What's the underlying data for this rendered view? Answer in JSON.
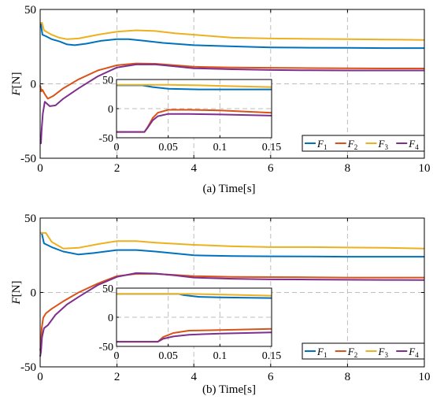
{
  "chart_data": [
    {
      "type": "line",
      "caption": "(a)  Time[s]",
      "ylabel": "F",
      "yunit": "[N]",
      "xlim": [
        0,
        10
      ],
      "ylim": [
        -50,
        50
      ],
      "xticks": [
        "0",
        "2",
        "4",
        "6",
        "8",
        "10"
      ],
      "yticks": [
        "50",
        "0",
        "-50"
      ],
      "grid": true,
      "legend_position": "bottom-right",
      "legend": [
        {
          "base": "F",
          "sub": "1"
        },
        {
          "base": "F",
          "sub": "2"
        },
        {
          "base": "F",
          "sub": "3"
        },
        {
          "base": "F",
          "sub": "4"
        }
      ],
      "colors": [
        "#0072BD",
        "#D95319",
        "#EDB120",
        "#7E2F8E"
      ],
      "series": [
        {
          "points": [
            [
              0,
              40
            ],
            [
              0.02,
              40
            ],
            [
              0.06,
              33
            ],
            [
              0.15,
              32
            ],
            [
              0.3,
              30
            ],
            [
              0.5,
              28.5
            ],
            [
              0.7,
              26.5
            ],
            [
              0.9,
              26
            ],
            [
              1.2,
              27
            ],
            [
              1.6,
              29
            ],
            [
              2,
              30
            ],
            [
              2.3,
              30
            ],
            [
              2.7,
              29
            ],
            [
              3.2,
              27.5
            ],
            [
              4,
              26
            ],
            [
              5,
              25.2
            ],
            [
              6,
              24.5
            ],
            [
              7,
              24.3
            ],
            [
              8,
              24.2
            ],
            [
              9,
              24
            ],
            [
              10,
              24
            ]
          ]
        },
        {
          "points": [
            [
              0,
              -1
            ],
            [
              0.03,
              -5
            ],
            [
              0.06,
              -4
            ],
            [
              0.12,
              -7
            ],
            [
              0.2,
              -10
            ],
            [
              0.35,
              -8
            ],
            [
              0.6,
              -3
            ],
            [
              1,
              3
            ],
            [
              1.5,
              9
            ],
            [
              2,
              12.5
            ],
            [
              2.5,
              13.7
            ],
            [
              3,
              13.5
            ],
            [
              3.5,
              12.5
            ],
            [
              4,
              11.5
            ],
            [
              5,
              11
            ],
            [
              6,
              10.8
            ],
            [
              7,
              10.6
            ],
            [
              8,
              10.5
            ],
            [
              9,
              10.3
            ],
            [
              10,
              10.3
            ]
          ]
        },
        {
          "points": [
            [
              0,
              41
            ],
            [
              0.05,
              41
            ],
            [
              0.1,
              36
            ],
            [
              0.3,
              33
            ],
            [
              0.5,
              31
            ],
            [
              0.7,
              30
            ],
            [
              1,
              30.5
            ],
            [
              1.5,
              33
            ],
            [
              2,
              35
            ],
            [
              2.5,
              36
            ],
            [
              3,
              35.5
            ],
            [
              3.5,
              34
            ],
            [
              4,
              33
            ],
            [
              5,
              31
            ],
            [
              6,
              30.5
            ],
            [
              7,
              30.2
            ],
            [
              8,
              30
            ],
            [
              9,
              29.8
            ],
            [
              10,
              29.5
            ]
          ]
        },
        {
          "points": [
            [
              0,
              -40
            ],
            [
              0.02,
              -40
            ],
            [
              0.04,
              -30
            ],
            [
              0.07,
              -20
            ],
            [
              0.12,
              -12
            ],
            [
              0.25,
              -15
            ],
            [
              0.4,
              -14.5
            ],
            [
              0.6,
              -10
            ],
            [
              1,
              -3
            ],
            [
              1.5,
              5
            ],
            [
              2,
              11
            ],
            [
              2.5,
              13
            ],
            [
              3,
              13
            ],
            [
              3.5,
              11.8
            ],
            [
              4,
              10.5
            ],
            [
              5,
              9.8
            ],
            [
              6,
              9.3
            ],
            [
              7,
              9.1
            ],
            [
              8,
              9
            ],
            [
              9,
              9
            ],
            [
              10,
              9
            ]
          ]
        }
      ],
      "inset": {
        "xlim": [
          0,
          0.15
        ],
        "ylim": [
          -50,
          50
        ],
        "xticks": [
          "0",
          "0.05",
          "0.1",
          "0.15"
        ],
        "yticks": [
          "50",
          "0",
          "-50"
        ],
        "series": [
          {
            "points": [
              [
                0,
                40
              ],
              [
                0.025,
                40
              ],
              [
                0.035,
                37
              ],
              [
                0.05,
                34
              ],
              [
                0.08,
                33
              ],
              [
                0.15,
                33
              ]
            ]
          },
          {
            "points": [
              [
                0,
                -40
              ],
              [
                0.027,
                -40
              ],
              [
                0.03,
                -32
              ],
              [
                0.035,
                -16
              ],
              [
                0.04,
                -7
              ],
              [
                0.05,
                -2
              ],
              [
                0.07,
                -2
              ],
              [
                0.1,
                -3
              ],
              [
                0.15,
                -7
              ]
            ]
          },
          {
            "points": [
              [
                0,
                41
              ],
              [
                0.05,
                41
              ],
              [
                0.08,
                40
              ],
              [
                0.1,
                39
              ],
              [
                0.15,
                37
              ]
            ]
          },
          {
            "points": [
              [
                0,
                -40
              ],
              [
                0.027,
                -40
              ],
              [
                0.03,
                -33
              ],
              [
                0.035,
                -20
              ],
              [
                0.04,
                -13
              ],
              [
                0.05,
                -9
              ],
              [
                0.07,
                -9
              ],
              [
                0.1,
                -10
              ],
              [
                0.15,
                -12
              ]
            ]
          }
        ]
      }
    },
    {
      "type": "line",
      "caption": "(b)  Time[s]",
      "ylabel": "F",
      "yunit": "[N]",
      "xlim": [
        0,
        10
      ],
      "ylim": [
        -50,
        50
      ],
      "xticks": [
        "0",
        "2",
        "4",
        "6",
        "8",
        "10"
      ],
      "yticks": [
        "50",
        "0",
        "-50"
      ],
      "grid": true,
      "legend_position": "bottom-right",
      "legend": [
        {
          "base": "F",
          "sub": "1"
        },
        {
          "base": "F",
          "sub": "2"
        },
        {
          "base": "F",
          "sub": "3"
        },
        {
          "base": "F",
          "sub": "4"
        }
      ],
      "colors": [
        "#0072BD",
        "#D95319",
        "#EDB120",
        "#7E2F8E"
      ],
      "series": [
        {
          "points": [
            [
              0,
              40
            ],
            [
              0.04,
              40
            ],
            [
              0.1,
              33
            ],
            [
              0.3,
              30.5
            ],
            [
              0.6,
              27.5
            ],
            [
              1,
              25.5
            ],
            [
              1.4,
              26.5
            ],
            [
              2,
              28.5
            ],
            [
              2.5,
              28.5
            ],
            [
              3,
              27.5
            ],
            [
              4,
              25
            ],
            [
              5,
              24.5
            ],
            [
              6,
              24.3
            ],
            [
              7,
              24.2
            ],
            [
              8,
              24
            ],
            [
              9,
              24
            ],
            [
              10,
              24
            ]
          ]
        },
        {
          "points": [
            [
              0,
              -39
            ],
            [
              0.02,
              -35
            ],
            [
              0.04,
              -24
            ],
            [
              0.08,
              -17
            ],
            [
              0.15,
              -14
            ],
            [
              0.3,
              -11
            ],
            [
              0.6,
              -6
            ],
            [
              1,
              0
            ],
            [
              1.5,
              6
            ],
            [
              2,
              11
            ],
            [
              2.5,
              12.5
            ],
            [
              3,
              12.5
            ],
            [
              3.5,
              11.8
            ],
            [
              4,
              11
            ],
            [
              5,
              10.5
            ],
            [
              6,
              10.3
            ],
            [
              7,
              10.2
            ],
            [
              8,
              10
            ],
            [
              9,
              10
            ],
            [
              10,
              10
            ]
          ]
        },
        {
          "points": [
            [
              0,
              40
            ],
            [
              0.05,
              40
            ],
            [
              0.15,
              40
            ],
            [
              0.3,
              34
            ],
            [
              0.6,
              29.5
            ],
            [
              1,
              30
            ],
            [
              1.5,
              32.5
            ],
            [
              2,
              34.5
            ],
            [
              2.5,
              34.5
            ],
            [
              3,
              33.5
            ],
            [
              4,
              32
            ],
            [
              5,
              31
            ],
            [
              6,
              30.5
            ],
            [
              7,
              30.5
            ],
            [
              8,
              30.2
            ],
            [
              9,
              30
            ],
            [
              10,
              29.5
            ]
          ]
        },
        {
          "points": [
            [
              0,
              -43
            ],
            [
              0.02,
              -40
            ],
            [
              0.05,
              -30
            ],
            [
              0.1,
              -24
            ],
            [
              0.2,
              -22
            ],
            [
              0.4,
              -15
            ],
            [
              0.7,
              -8
            ],
            [
              1,
              -3
            ],
            [
              1.5,
              5
            ],
            [
              2,
              10.5
            ],
            [
              2.5,
              13
            ],
            [
              3,
              12.7
            ],
            [
              3.5,
              11.5
            ],
            [
              4,
              10
            ],
            [
              5,
              9.2
            ],
            [
              6,
              8.8
            ],
            [
              7,
              8.7
            ],
            [
              8,
              8.5
            ],
            [
              9,
              8.4
            ],
            [
              10,
              8.3
            ]
          ]
        }
      ],
      "inset": {
        "xlim": [
          0,
          0.15
        ],
        "ylim": [
          -50,
          50
        ],
        "xticks": [
          "0",
          "0.05",
          "0.1",
          "0.15"
        ],
        "yticks": [
          "50",
          "0",
          "-50"
        ],
        "series": [
          {
            "points": [
              [
                0,
                40
              ],
              [
                0.06,
                40
              ],
              [
                0.065,
                38
              ],
              [
                0.08,
                35
              ],
              [
                0.1,
                34
              ],
              [
                0.15,
                33
              ]
            ]
          },
          {
            "points": [
              [
                0,
                -42
              ],
              [
                0.04,
                -42
              ],
              [
                0.045,
                -34
              ],
              [
                0.055,
                -27
              ],
              [
                0.07,
                -23
              ],
              [
                0.1,
                -22
              ],
              [
                0.15,
                -20
              ]
            ]
          },
          {
            "points": [
              [
                0,
                40
              ],
              [
                0.07,
                40
              ],
              [
                0.1,
                39
              ],
              [
                0.15,
                37
              ]
            ]
          },
          {
            "points": [
              [
                0,
                -42
              ],
              [
                0.04,
                -42
              ],
              [
                0.045,
                -37
              ],
              [
                0.055,
                -33
              ],
              [
                0.07,
                -30
              ],
              [
                0.1,
                -28
              ],
              [
                0.15,
                -26
              ]
            ]
          }
        ]
      }
    }
  ]
}
